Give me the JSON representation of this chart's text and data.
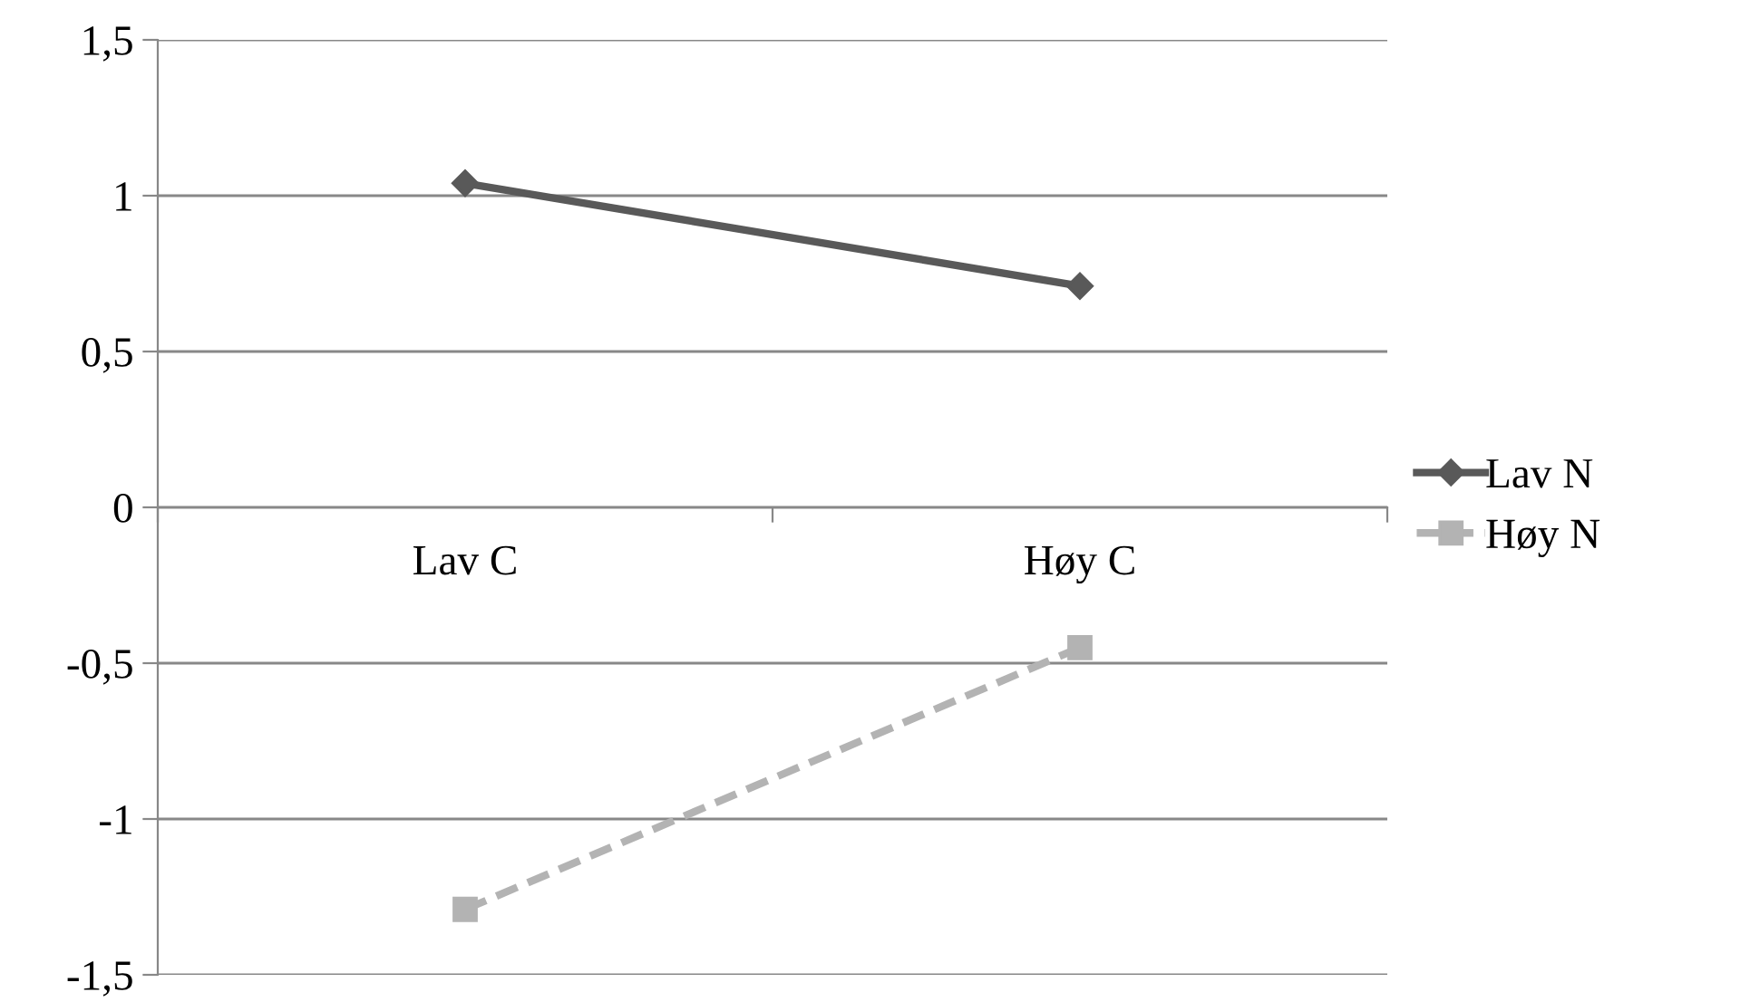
{
  "chart_data": {
    "type": "line",
    "categories": [
      "Lav C",
      "Høy C"
    ],
    "series": [
      {
        "name": "Lav N",
        "color": "#595959",
        "values": [
          1.04,
          0.71
        ],
        "marker": "diamond",
        "line_style": "solid"
      },
      {
        "name": "Høy N",
        "color": "#b3b3b3",
        "values": [
          -1.29,
          -0.45
        ],
        "marker": "square",
        "line_style": "dashed"
      }
    ],
    "ylim": [
      -1.5,
      1.5
    ],
    "yticks": [
      {
        "value": -1.5,
        "label": "-1,5"
      },
      -1,
      {
        "value": -0.5,
        "label": "-0,5"
      },
      0,
      {
        "value": 0.5,
        "label": "0,5"
      },
      1,
      {
        "value": 1.5,
        "label": "1,5"
      }
    ],
    "grid": "y",
    "legend": "right"
  }
}
